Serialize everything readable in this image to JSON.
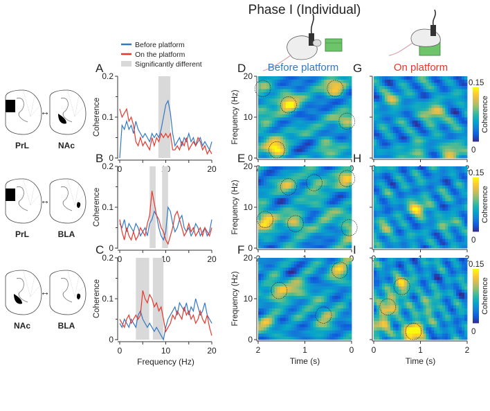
{
  "title": "Phase I (Individual)",
  "legend": [
    {
      "label": "Before platform",
      "color": "#2f78c4"
    },
    {
      "label": "On the platform",
      "color": "#e8352a"
    },
    {
      "label": "Significantly different",
      "color": "#d9d9d9"
    }
  ],
  "column_titles": {
    "before": {
      "label": "Before platform",
      "color": "#2f78c4"
    },
    "on": {
      "label": "On platform",
      "color": "#e8352a"
    }
  },
  "brain_rows": [
    {
      "left": "PrL",
      "right": "NAc"
    },
    {
      "left": "PrL",
      "right": "BLA"
    },
    {
      "left": "NAc",
      "right": "BLA"
    }
  ],
  "chart_data": [
    {
      "type": "line",
      "panel": "A",
      "xlabel": "",
      "ylabel": "Coherence",
      "xlim": [
        0,
        20
      ],
      "ylim": [
        0,
        0.2
      ],
      "xticks": [
        "0",
        "10",
        "20"
      ],
      "yticks": [
        "0",
        "0.1",
        "0.2"
      ],
      "sig_bands": [
        [
          8.4,
          11
        ]
      ],
      "x_step": 0.5,
      "series": [
        {
          "name": "Before platform",
          "values": [
            0,
            0.08,
            0.07,
            0.09,
            0.07,
            0.08,
            0.06,
            0.09,
            0.07,
            0.06,
            0.05,
            0.06,
            0.05,
            0.04,
            0.06,
            0.05,
            0.06,
            0.05,
            0.07,
            0.1,
            0.13,
            0.14,
            0.11,
            0.06,
            0.03,
            0.04,
            0.05,
            0.03,
            0.05,
            0.04,
            0.06,
            0.04,
            0.05,
            0.03,
            0.04,
            0.05,
            0.03,
            0.04,
            0.03,
            0.02,
            0.04
          ]
        },
        {
          "name": "On the platform",
          "values": [
            0.12,
            0.1,
            0.11,
            0.12,
            0.09,
            0.1,
            0.08,
            0.04,
            0.03,
            0.05,
            0.03,
            0.04,
            0.03,
            0.02,
            0.05,
            0.03,
            0.05,
            0.04,
            0.06,
            0.05,
            0.06,
            0.05,
            0.06,
            0.02,
            0.02,
            0.03,
            0.02,
            0.04,
            0.03,
            0.05,
            0.02,
            0.03,
            0.04,
            0.03,
            0.05,
            0.04,
            0.02,
            0.03,
            0.01,
            0.02,
            0.01
          ]
        }
      ]
    },
    {
      "type": "line",
      "panel": "B",
      "xlabel": "",
      "ylabel": "Coherence",
      "xlim": [
        0,
        20
      ],
      "ylim": [
        0,
        0.2
      ],
      "xticks": [
        "0",
        "10",
        "20"
      ],
      "yticks": [
        "0",
        "0.1",
        "0.2"
      ],
      "sig_bands": [
        [
          6.5,
          7.8
        ],
        [
          9.2,
          10.5
        ]
      ],
      "x_step": 0.5,
      "series": [
        {
          "name": "Before platform",
          "values": [
            0.06,
            0.05,
            0.07,
            0.04,
            0.06,
            0.05,
            0.04,
            0.06,
            0.05,
            0.03,
            0.04,
            0.05,
            0.03,
            0.06,
            0.07,
            0.09,
            0.08,
            0.05,
            0.03,
            0.02,
            0.04,
            0.1,
            0.09,
            0.06,
            0.04,
            0.05,
            0.07,
            0.08,
            0.05,
            0.04,
            0.05,
            0.03,
            0.04,
            0.06,
            0.05,
            0.03,
            0.04,
            0.05,
            0.03,
            0.04,
            0.07
          ]
        },
        {
          "name": "On the platform",
          "values": [
            0.07,
            0.04,
            0.02,
            0.05,
            0.03,
            0.02,
            0.04,
            0.02,
            0.03,
            0.05,
            0.04,
            0.03,
            0.06,
            0.08,
            0.14,
            0.11,
            0.08,
            0.07,
            0.05,
            0.04,
            0.02,
            0.01,
            0.03,
            0.05,
            0.08,
            0.09,
            0.07,
            0.05,
            0.03,
            0.04,
            0.06,
            0.04,
            0.05,
            0.03,
            0.04,
            0.05,
            0.03,
            0.05,
            0.04,
            0.03,
            0.05
          ]
        }
      ]
    },
    {
      "type": "line",
      "panel": "C",
      "xlabel": "Frequency (Hz)",
      "ylabel": "Coherence",
      "xlim": [
        0,
        20
      ],
      "ylim": [
        0,
        0.2
      ],
      "xticks": [
        "0",
        "10",
        "20"
      ],
      "yticks": [
        "0",
        "0.1",
        "0.2"
      ],
      "sig_bands": [
        [
          3.5,
          6.4
        ],
        [
          7.2,
          9.5
        ]
      ],
      "x_step": 0.5,
      "series": [
        {
          "name": "Before platform",
          "values": [
            0.04,
            0.03,
            0.05,
            0.04,
            0.03,
            0.05,
            0.04,
            0.03,
            0.06,
            0.07,
            0.05,
            0.04,
            0.03,
            0.04,
            0.03,
            0.02,
            0.03,
            0.02,
            0.01,
            0.0,
            0.03,
            0.05,
            0.06,
            0.07,
            0.08,
            0.06,
            0.09,
            0.08,
            0.07,
            0.09,
            0.06,
            0.08,
            0.07,
            0.1,
            0.08,
            0.06,
            0.07,
            0.09,
            0.06,
            0.05,
            0.04
          ]
        },
        {
          "name": "On the platform",
          "values": [
            0.05,
            0.04,
            0.03,
            0.05,
            0.06,
            0.04,
            0.05,
            0.06,
            0.05,
            0.06,
            0.12,
            0.1,
            0.09,
            0.11,
            0.1,
            0.08,
            0.09,
            0.07,
            0.08,
            0.05,
            0.02,
            0.03,
            0.04,
            0.06,
            0.05,
            0.07,
            0.06,
            0.05,
            0.08,
            0.06,
            0.07,
            0.05,
            0.06,
            0.04,
            0.05,
            0.07,
            0.05,
            0.04,
            0.06,
            0.03,
            0.01
          ]
        }
      ]
    },
    {
      "type": "heatmap",
      "panel": "D",
      "xlabel": "",
      "ylabel": "Frequency (Hz)",
      "xlim": [
        2,
        0
      ],
      "ylim": [
        0,
        20
      ],
      "xticks": [
        "2",
        "1",
        "0"
      ],
      "yticks": [
        "0",
        "10",
        "20"
      ],
      "seed": 1,
      "hotspots": [
        [
          1.6,
          2,
          0.1,
          1
        ],
        [
          1.35,
          13,
          0.09,
          1
        ],
        [
          0.35,
          17,
          0.07,
          1
        ],
        [
          1.9,
          17,
          0.05,
          1
        ],
        [
          0.1,
          9,
          0.05,
          1
        ],
        [
          0.55,
          3,
          0.05,
          0
        ],
        [
          1.85,
          8,
          0.05,
          0
        ]
      ]
    },
    {
      "type": "heatmap",
      "panel": "E",
      "xlabel": "",
      "ylabel": "Frequency (Hz)",
      "xlim": [
        2,
        0
      ],
      "ylim": [
        0,
        20
      ],
      "xticks": [
        "2",
        "1",
        "0"
      ],
      "yticks": [
        "0",
        "10",
        "20"
      ],
      "seed": 2,
      "hotspots": [
        [
          1.85,
          7,
          0.1,
          1
        ],
        [
          1.2,
          6,
          0.07,
          1
        ],
        [
          0.1,
          17,
          0.08,
          1
        ],
        [
          0.8,
          16,
          0.05,
          1
        ],
        [
          1.35,
          15,
          0.05,
          1
        ],
        [
          0.05,
          5,
          0.07,
          1
        ],
        [
          0.6,
          9,
          0.04,
          0
        ]
      ]
    },
    {
      "type": "heatmap",
      "panel": "F",
      "xlabel": "Time (s)",
      "ylabel": "Frequency (Hz)",
      "xlim": [
        2,
        0
      ],
      "ylim": [
        0,
        20
      ],
      "xticks": [
        "2",
        "1",
        "0"
      ],
      "yticks": [
        "0",
        "10",
        "20"
      ],
      "seed": 3,
      "hotspots": [
        [
          1.55,
          12,
          0.08,
          1
        ],
        [
          0.25,
          17,
          0.07,
          1
        ],
        [
          0.6,
          6,
          0.06,
          1
        ],
        [
          1.1,
          12,
          0.05,
          0
        ],
        [
          1.8,
          4,
          0.05,
          0
        ]
      ]
    },
    {
      "type": "heatmap",
      "panel": "G",
      "xlabel": "",
      "ylabel": "",
      "xlim": [
        0,
        2
      ],
      "ylim": [
        0,
        20
      ],
      "xticks": [
        "0",
        "1",
        "2"
      ],
      "yticks": [],
      "seed": 4,
      "hotspots": [
        [
          1.3,
          11,
          0.07,
          0
        ],
        [
          1.7,
          2,
          0.06,
          0
        ],
        [
          0.9,
          1,
          0.05,
          0
        ],
        [
          0.4,
          14,
          0.04,
          0
        ]
      ],
      "colorbar": {
        "label": "Coherence",
        "min": "0",
        "max": "0.15"
      }
    },
    {
      "type": "heatmap",
      "panel": "H",
      "xlabel": "",
      "ylabel": "",
      "xlim": [
        0,
        2
      ],
      "ylim": [
        0,
        20
      ],
      "xticks": [
        "0",
        "1",
        "2"
      ],
      "yticks": [],
      "seed": 5,
      "hotspots": [
        [
          0.95,
          10,
          0.07,
          0
        ],
        [
          0.2,
          4,
          0.04,
          0
        ],
        [
          1.6,
          6,
          0.03,
          0
        ]
      ],
      "colorbar": {
        "label": "Coherence",
        "min": "0",
        "max": "0.15"
      }
    },
    {
      "type": "heatmap",
      "panel": "I",
      "xlabel": "Time (s)",
      "ylabel": "",
      "xlim": [
        0,
        2
      ],
      "ylim": [
        0,
        20
      ],
      "xticks": [
        "0",
        "1",
        "2"
      ],
      "yticks": [],
      "seed": 6,
      "hotspots": [
        [
          0.85,
          2,
          0.12,
          1
        ],
        [
          0.3,
          8,
          0.08,
          1
        ],
        [
          0.6,
          13,
          0.07,
          1
        ],
        [
          1.2,
          8,
          0.05,
          0
        ],
        [
          0.15,
          3,
          0.06,
          0
        ]
      ],
      "colorbar": {
        "label": "Coherence",
        "min": "0",
        "max": "0.15"
      }
    }
  ]
}
